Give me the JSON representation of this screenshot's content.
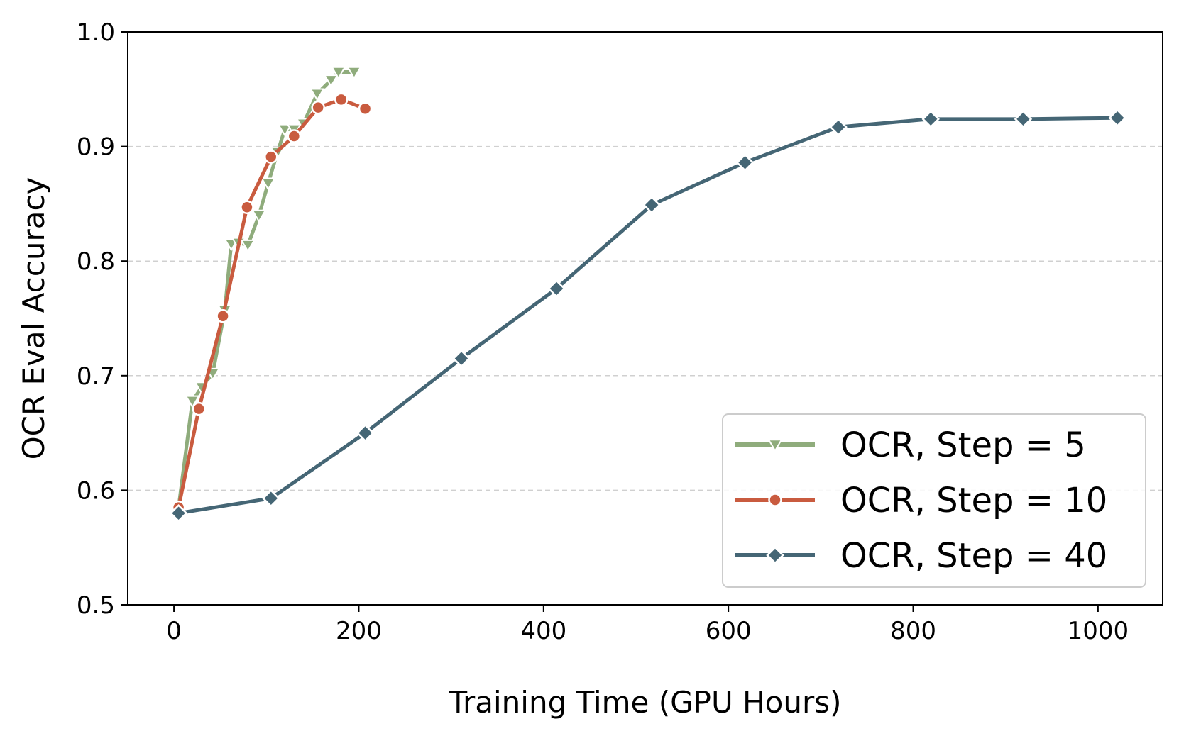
{
  "chart_data": {
    "type": "line",
    "title": "",
    "xlabel": "Training Time (GPU Hours)",
    "ylabel": "OCR Eval Accuracy",
    "xlim": [
      -50,
      1070
    ],
    "ylim": [
      0.5,
      1.0
    ],
    "xticks": [
      0,
      200,
      400,
      600,
      800,
      1000
    ],
    "xtick_labels": [
      "0",
      "200",
      "400",
      "600",
      "800",
      "1000"
    ],
    "yticks": [
      0.5,
      0.6,
      0.7,
      0.8,
      0.9,
      1.0
    ],
    "ytick_labels": [
      "0.5",
      "0.6",
      "0.7",
      "0.8",
      "0.9",
      "1.0"
    ],
    "grid": "horizontal dashed",
    "legend_position": "lower-right",
    "series": [
      {
        "name": "OCR, Step = 5",
        "color": "#8fac7c",
        "marker": "triangle-down",
        "x": [
          5,
          20,
          30,
          42,
          55,
          62,
          70,
          80,
          92,
          102,
          112,
          120,
          130,
          140,
          155,
          170,
          178,
          195
        ],
        "y": [
          0.585,
          0.678,
          0.69,
          0.702,
          0.757,
          0.815,
          0.816,
          0.814,
          0.84,
          0.868,
          0.895,
          0.915,
          0.915,
          0.92,
          0.946,
          0.958,
          0.965,
          0.965
        ]
      },
      {
        "name": "OCR, Step = 10",
        "color": "#c95b3f",
        "marker": "circle",
        "x": [
          5,
          27,
          53,
          79,
          105,
          130,
          156,
          181,
          207
        ],
        "y": [
          0.585,
          0.671,
          0.752,
          0.847,
          0.891,
          0.909,
          0.934,
          0.941,
          0.933
        ]
      },
      {
        "name": "OCR, Step = 40",
        "color": "#456675",
        "marker": "diamond",
        "x": [
          5,
          105,
          207,
          311,
          414,
          517,
          618,
          719,
          819,
          919,
          1021
        ],
        "y": [
          0.58,
          0.593,
          0.65,
          0.715,
          0.776,
          0.849,
          0.886,
          0.917,
          0.924,
          0.924,
          0.925
        ]
      }
    ]
  }
}
